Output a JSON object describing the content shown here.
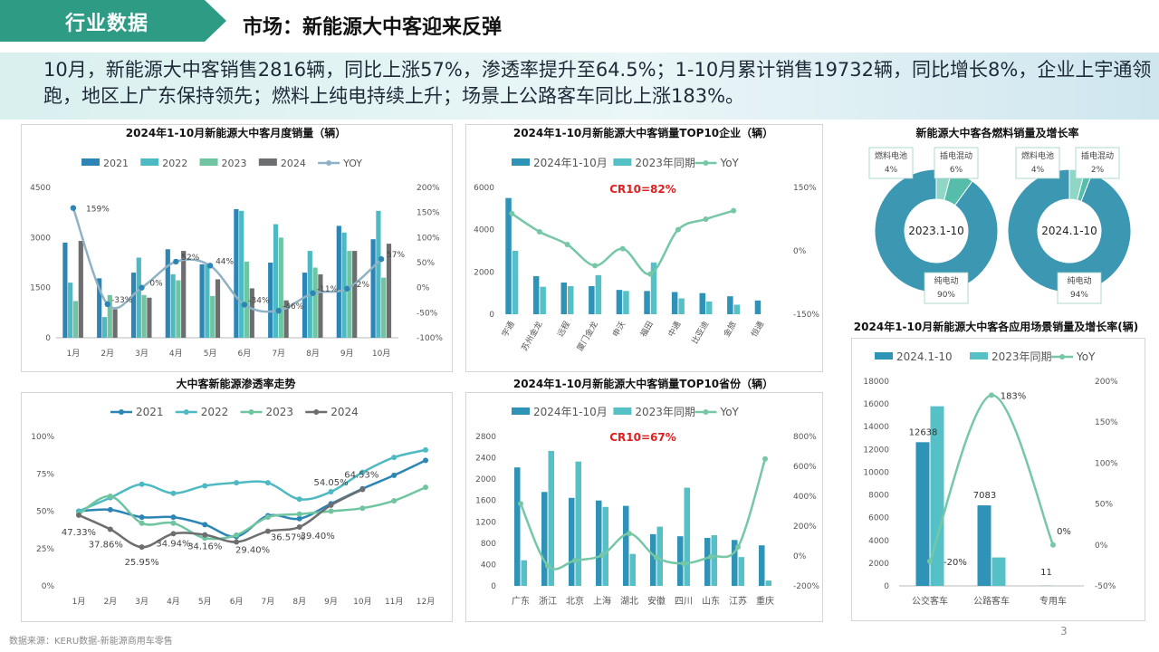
{
  "header": {
    "tag": "行业数据",
    "title": "市场：新能源大中客迎来反弹"
  },
  "banner": {
    "text": "10月，新能源大中客销售2816辆，同比上涨57%，渗透率提升至64.5%；1-10月累计销售19732辆，同比增长8%，企业上宇通领跑，地区上广东保持领先；燃料上纯电持续上升；场景上公路客车同比上涨183%。"
  },
  "footer": {
    "source": "数据来源：KERU数据-新能源商用车零售",
    "page": "3"
  },
  "colors": {
    "c2021": "#2c85b4",
    "c2022": "#4db9c2",
    "c2023": "#6fc5a0",
    "c2024": "#6d6e70",
    "yoy": "#8fb3c4",
    "bar_primary": "#2e93b6",
    "bar_secondary": "#55c1c6",
    "yoy_green": "#76c7a5",
    "ring": "#3b97b2",
    "accent_red": "#e02020"
  },
  "chart_data": [
    {
      "id": "monthly",
      "type": "bar",
      "title": "2024年1-10月新能源大中客月度销量（辆）",
      "categories": [
        "1月",
        "2月",
        "3月",
        "4月",
        "5月",
        "6月",
        "7月",
        "8月",
        "9月",
        "10月"
      ],
      "series": [
        {
          "name": "2021",
          "values": [
            2850,
            1780,
            1950,
            2650,
            2200,
            3850,
            2250,
            1950,
            3350,
            2950
          ]
        },
        {
          "name": "2022",
          "values": [
            1650,
            620,
            2400,
            1900,
            2200,
            3800,
            3400,
            2600,
            3150,
            3800
          ]
        },
        {
          "name": "2023",
          "values": [
            1100,
            1280,
            1280,
            1720,
            1250,
            2280,
            3000,
            2100,
            2600,
            1800
          ]
        },
        {
          "name": "2024",
          "values": [
            2900,
            850,
            1200,
            2600,
            1750,
            1480,
            1120,
            1900,
            2600,
            2816
          ]
        }
      ],
      "yoy": {
        "name": "YOY",
        "values": [
          159,
          -33,
          0,
          52,
          44,
          -34,
          -46,
          -11,
          -2,
          57
        ],
        "labels": [
          "159%",
          "-33%",
          "0%",
          "52%",
          "44%",
          "-34%",
          "-46%",
          "-11%",
          "-2%",
          "57%"
        ]
      },
      "ylim": [
        0,
        4500
      ],
      "yticks": [
        "0",
        "1500",
        "3000",
        "4500"
      ],
      "y2lim": [
        -100,
        200
      ],
      "y2ticks": [
        "-100%",
        "-50%",
        "0%",
        "50%",
        "100%",
        "150%",
        "200%"
      ]
    },
    {
      "id": "top10_companies",
      "type": "bar",
      "title": "2024年1-10月新能源大中客销量TOP10企业（辆）",
      "annotation": "CR10=82%",
      "categories": [
        "宇通",
        "苏州金龙",
        "远程",
        "厦门金龙",
        "申沃",
        "福田",
        "中通",
        "比亚迪",
        "金旅",
        "恒通"
      ],
      "series": [
        {
          "name": "2024年1-10月",
          "values": [
            5500,
            1800,
            1500,
            1330,
            1150,
            1100,
            1050,
            1000,
            850,
            650
          ]
        },
        {
          "name": "2023年同期",
          "values": [
            3000,
            1300,
            1330,
            1850,
            1100,
            2450,
            750,
            600,
            450,
            null
          ]
        }
      ],
      "yoy": {
        "name": "YoY",
        "values": [
          88,
          45,
          15,
          -35,
          5,
          -55,
          50,
          75,
          95,
          null
        ]
      },
      "ylim": [
        0,
        6000
      ],
      "yticks": [
        "0",
        "2000",
        "4000",
        "6000"
      ],
      "y2lim": [
        -150,
        150
      ],
      "y2ticks": [
        "-150%",
        "0%",
        "150%"
      ]
    },
    {
      "id": "fuel",
      "type": "pie",
      "title": "新能源大中客各燃料销量及增长率",
      "pies": [
        {
          "center": "2023.1-10",
          "slices": [
            {
              "label": "纯电动",
              "value": 90,
              "text": "90%"
            },
            {
              "label": "燃料电池",
              "value": 4,
              "text": "4%"
            },
            {
              "label": "插电混动",
              "value": 6,
              "text": "6%"
            }
          ]
        },
        {
          "center": "2024.1-10",
          "slices": [
            {
              "label": "纯电动",
              "value": 94,
              "text": "94%"
            },
            {
              "label": "燃料电池",
              "value": 4,
              "text": "4%"
            },
            {
              "label": "插电混动",
              "value": 2,
              "text": "2%"
            }
          ]
        }
      ]
    },
    {
      "id": "penetration",
      "type": "line",
      "title": "大中客新能源渗透率走势",
      "categories": [
        "1月",
        "2月",
        "3月",
        "4月",
        "5月",
        "6月",
        "7月",
        "8月",
        "9月",
        "10月",
        "11月",
        "12月"
      ],
      "series": [
        {
          "name": "2021",
          "values": [
            50,
            51,
            46,
            46,
            41,
            33,
            47,
            45,
            55,
            65,
            74,
            84
          ]
        },
        {
          "name": "2022",
          "values": [
            50,
            59,
            68,
            62,
            67,
            69,
            69,
            58,
            63,
            76,
            86,
            91
          ]
        },
        {
          "name": "2023",
          "values": [
            48,
            60,
            42,
            42,
            32,
            34,
            46,
            48,
            50,
            52,
            57,
            66
          ]
        },
        {
          "name": "2024",
          "values": [
            47.33,
            37.86,
            25.95,
            34.94,
            34.16,
            29.4,
            36.57,
            39.4,
            54.05,
            64.53,
            null,
            null
          ]
        }
      ],
      "labels_2024": [
        "47.33%",
        "37.86%",
        "25.95%",
        "34.94%",
        "34.16%",
        "29.40%",
        "36.57%",
        "39.40%",
        "54.05%",
        "64.53%"
      ],
      "ylim": [
        0,
        100
      ],
      "yticks": [
        "0%",
        "25%",
        "50%",
        "75%",
        "100%"
      ]
    },
    {
      "id": "top10_provinces",
      "type": "bar",
      "title": "2024年1-10月新能源大中客销量TOP10省份（辆）",
      "annotation": "CR10=67%",
      "categories": [
        "广东",
        "浙江",
        "北京",
        "上海",
        "湖北",
        "安徽",
        "四川",
        "山东",
        "江苏",
        "重庆"
      ],
      "series": [
        {
          "name": "2024年1-10月",
          "values": [
            2220,
            1760,
            1650,
            1600,
            1500,
            970,
            930,
            900,
            860,
            760
          ]
        },
        {
          "name": "2023年同期",
          "values": [
            480,
            2530,
            2330,
            1480,
            600,
            1110,
            1840,
            950,
            540,
            100
          ]
        }
      ],
      "yoy": {
        "name": "YoY",
        "values": [
          350,
          -65,
          -30,
          5,
          150,
          -10,
          -50,
          -5,
          60,
          650
        ]
      },
      "ylim": [
        0,
        2800
      ],
      "yticks": [
        "0",
        "400",
        "800",
        "1200",
        "1600",
        "2000",
        "2400",
        "2800"
      ],
      "y2lim": [
        -200,
        800
      ],
      "y2ticks": [
        "-200%",
        "0%",
        "200%",
        "400%",
        "600%",
        "800%"
      ]
    },
    {
      "id": "scenarios",
      "type": "bar",
      "title": "2024年1-10月新能源大中客各应用场景销量及增长率(辆)",
      "categories": [
        "公交客车",
        "公路客车",
        "专用车"
      ],
      "series": [
        {
          "name": "2024.1-10",
          "values": [
            12638,
            7083,
            11
          ],
          "labels": [
            "12638",
            "7083",
            "11"
          ]
        },
        {
          "name": "2023年同期",
          "values": [
            15800,
            2500,
            11
          ]
        }
      ],
      "yoy": {
        "name": "YoY",
        "values": [
          -20,
          183,
          0
        ],
        "labels": [
          "-20%",
          "183%",
          "0%"
        ]
      },
      "ylim": [
        0,
        18000
      ],
      "yticks": [
        "0",
        "2000",
        "4000",
        "6000",
        "8000",
        "10000",
        "12000",
        "14000",
        "16000",
        "18000"
      ],
      "y2lim": [
        -50,
        200
      ],
      "y2ticks": [
        "-50%",
        "0%",
        "50%",
        "100%",
        "150%",
        "200%"
      ]
    }
  ]
}
